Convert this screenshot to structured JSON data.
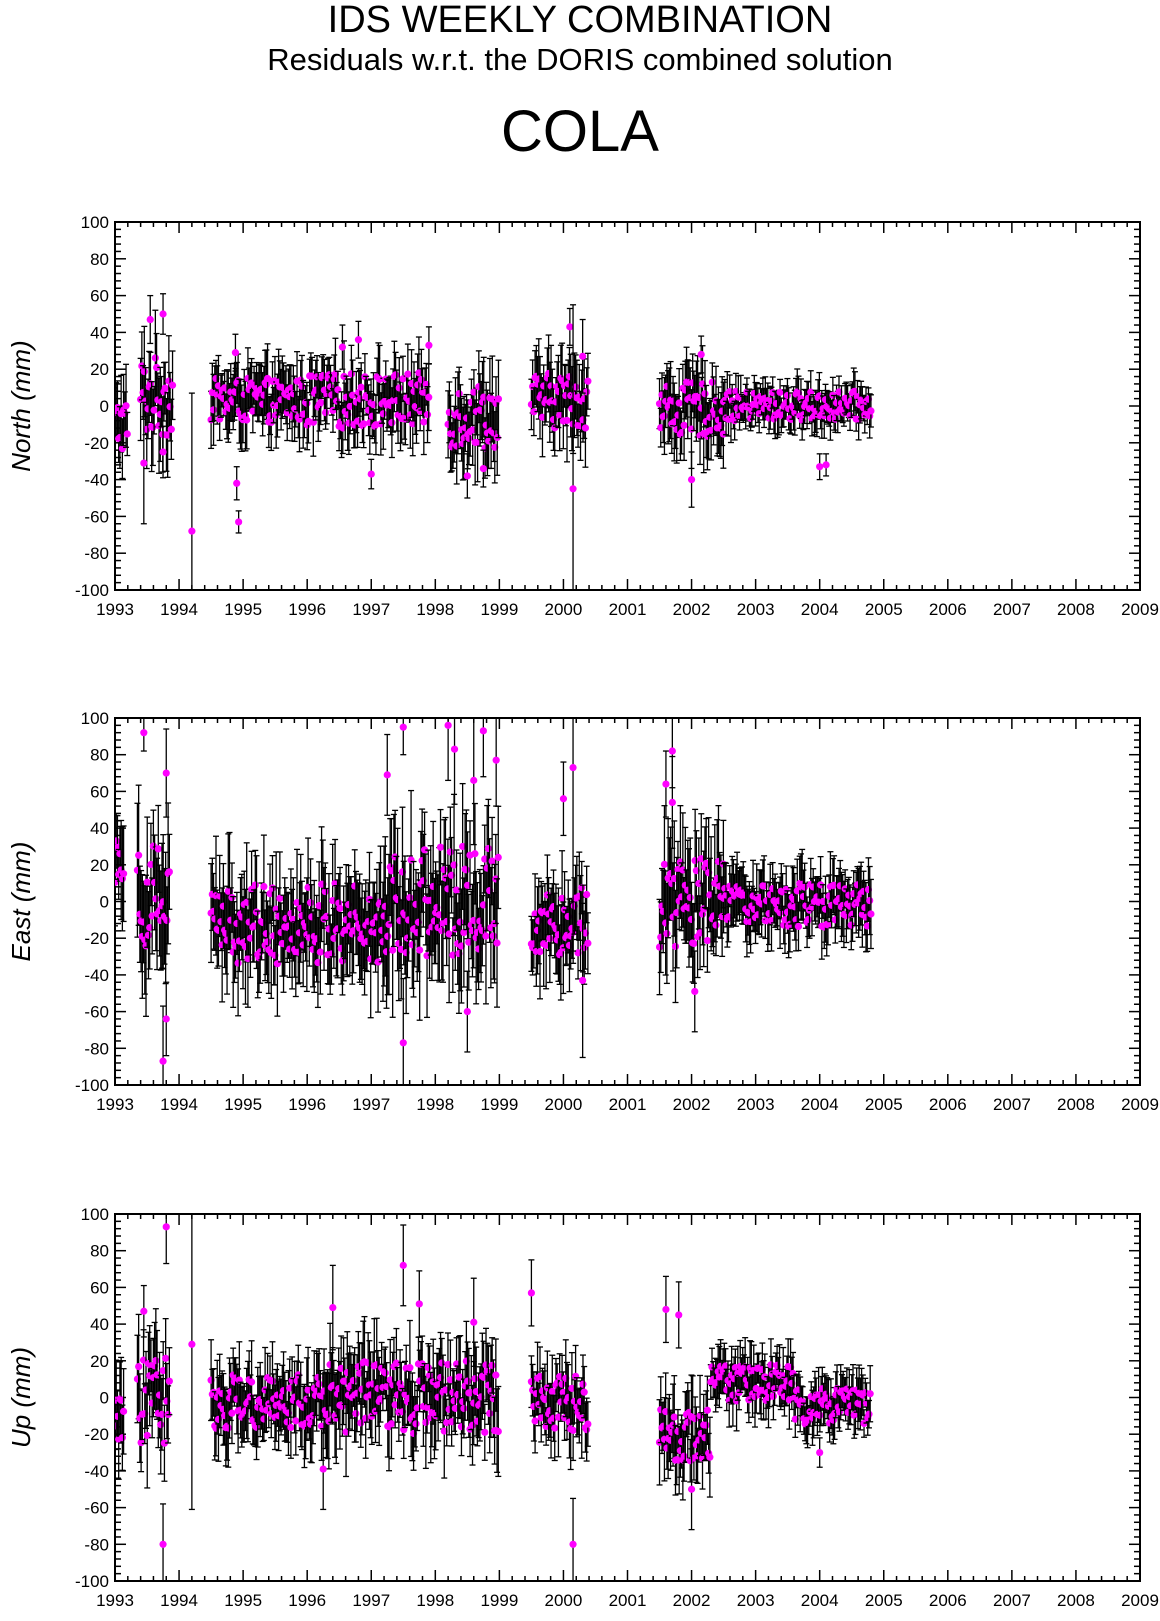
{
  "header": {
    "title": "IDS WEEKLY COMBINATION",
    "subtitle": "Residuals w.r.t. the DORIS combined solution",
    "station": "COLA"
  },
  "colors": {
    "marker": "#ff00ff",
    "errorbar": "#000000",
    "axis": "#000000"
  },
  "chart_data": [
    {
      "type": "scatter",
      "name": "north",
      "xlabel": "",
      "ylabel": "North (mm)",
      "xlim": [
        1993,
        2009
      ],
      "ylim": [
        -100,
        100
      ],
      "xticks": [
        "1993",
        "1994",
        "1995",
        "1996",
        "1997",
        "1998",
        "1999",
        "2000",
        "2001",
        "2002",
        "2003",
        "2004",
        "2005",
        "2006",
        "2007",
        "2008",
        "2009"
      ],
      "yticks": [
        "100",
        "80",
        "60",
        "40",
        "20",
        "0",
        "-20",
        "-40",
        "-60",
        "-80",
        "-100"
      ],
      "marker": "circle",
      "error_bars": true,
      "grid": false,
      "segments": [
        {
          "start": 1993.0,
          "end": 1993.2,
          "center": -10,
          "amp": 15,
          "err": 18
        },
        {
          "start": 1993.4,
          "end": 1993.9,
          "center": 5,
          "amp": 22,
          "err": 20
        },
        {
          "start": 1994.5,
          "end": 1996.0,
          "center": 3,
          "amp": 12,
          "err": 15
        },
        {
          "start": 1996.0,
          "end": 1997.9,
          "center": 3,
          "amp": 15,
          "err": 15
        },
        {
          "start": 1998.2,
          "end": 1999.0,
          "center": -5,
          "amp": 18,
          "err": 18
        },
        {
          "start": 1999.5,
          "end": 2000.4,
          "center": 3,
          "amp": 15,
          "err": 18
        },
        {
          "start": 2001.5,
          "end": 2002.5,
          "center": -2,
          "amp": 15,
          "err": 17
        },
        {
          "start": 2002.5,
          "end": 2004.8,
          "center": 0,
          "amp": 8,
          "err": 10
        }
      ],
      "points": [
        {
          "x": 1994.2,
          "y": -68,
          "err": 75
        },
        {
          "x": 1993.55,
          "y": 47,
          "err": 13
        },
        {
          "x": 1993.75,
          "y": 50,
          "err": 11
        },
        {
          "x": 1993.45,
          "y": -31,
          "err": 33
        },
        {
          "x": 1993.75,
          "y": -25,
          "err": 14
        },
        {
          "x": 1994.9,
          "y": -42,
          "err": 9
        },
        {
          "x": 1994.93,
          "y": -63,
          "err": 6
        },
        {
          "x": 1994.88,
          "y": 29,
          "err": 10
        },
        {
          "x": 1996.55,
          "y": 32,
          "err": 12
        },
        {
          "x": 1996.8,
          "y": 36,
          "err": 10
        },
        {
          "x": 1997.0,
          "y": -37,
          "err": 8
        },
        {
          "x": 1997.9,
          "y": 33,
          "err": 10
        },
        {
          "x": 1998.5,
          "y": -38,
          "err": 12
        },
        {
          "x": 1998.75,
          "y": -34,
          "err": 10
        },
        {
          "x": 2000.1,
          "y": 43,
          "err": 10
        },
        {
          "x": 2000.15,
          "y": -45,
          "err": 100
        },
        {
          "x": 2000.3,
          "y": 27,
          "err": 20
        },
        {
          "x": 2002.0,
          "y": -40,
          "err": 15
        },
        {
          "x": 2002.15,
          "y": 28,
          "err": 10
        },
        {
          "x": 2004.0,
          "y": -33,
          "err": 7
        },
        {
          "x": 2004.1,
          "y": -32,
          "err": 6
        }
      ]
    },
    {
      "type": "scatter",
      "name": "east",
      "xlabel": "",
      "ylabel": "East (mm)",
      "xlim": [
        1993,
        2009
      ],
      "ylim": [
        -100,
        100
      ],
      "xticks": [
        "1993",
        "1994",
        "1995",
        "1996",
        "1997",
        "1998",
        "1999",
        "2000",
        "2001",
        "2002",
        "2003",
        "2004",
        "2005",
        "2006",
        "2007",
        "2008",
        "2009"
      ],
      "yticks": [
        "100",
        "80",
        "60",
        "40",
        "20",
        "0",
        "-20",
        "-40",
        "-60",
        "-80",
        "-100"
      ],
      "marker": "circle",
      "error_bars": true,
      "grid": false,
      "segments": [
        {
          "start": 1993.0,
          "end": 1993.15,
          "center": 25,
          "amp": 15,
          "err": 22
        },
        {
          "start": 1993.35,
          "end": 1993.85,
          "center": 5,
          "amp": 30,
          "err": 30
        },
        {
          "start": 1994.5,
          "end": 1997.2,
          "center": -12,
          "amp": 22,
          "err": 25
        },
        {
          "start": 1997.2,
          "end": 1999.0,
          "center": 0,
          "amp": 30,
          "err": 30
        },
        {
          "start": 1999.5,
          "end": 2000.4,
          "center": -10,
          "amp": 20,
          "err": 20
        },
        {
          "start": 2001.5,
          "end": 2002.5,
          "center": 0,
          "amp": 25,
          "err": 25
        },
        {
          "start": 2002.5,
          "end": 2004.8,
          "center": -2,
          "amp": 12,
          "err": 15
        }
      ],
      "points": [
        {
          "x": 1993.45,
          "y": 92,
          "err": 10
        },
        {
          "x": 1993.8,
          "y": 70,
          "err": 24
        },
        {
          "x": 1993.75,
          "y": -87,
          "err": 30
        },
        {
          "x": 1993.8,
          "y": -64,
          "err": 20
        },
        {
          "x": 1997.25,
          "y": 69,
          "err": 22
        },
        {
          "x": 1997.5,
          "y": 95,
          "err": 15
        },
        {
          "x": 1997.5,
          "y": -77,
          "err": 35
        },
        {
          "x": 1998.2,
          "y": 96,
          "err": 30
        },
        {
          "x": 1998.3,
          "y": 83,
          "err": 30
        },
        {
          "x": 1998.6,
          "y": 66,
          "err": 35
        },
        {
          "x": 1998.75,
          "y": 93,
          "err": 25
        },
        {
          "x": 1998.95,
          "y": 77,
          "err": 25
        },
        {
          "x": 1998.5,
          "y": -60,
          "err": 22
        },
        {
          "x": 2000.0,
          "y": 56,
          "err": 20
        },
        {
          "x": 2000.15,
          "y": 73,
          "err": 100
        },
        {
          "x": 2000.3,
          "y": -43,
          "err": 42
        },
        {
          "x": 2001.6,
          "y": 64,
          "err": 18
        },
        {
          "x": 2001.7,
          "y": 82,
          "err": 20
        },
        {
          "x": 2001.7,
          "y": 54,
          "err": 25
        },
        {
          "x": 2002.05,
          "y": -49,
          "err": 22
        }
      ]
    },
    {
      "type": "scatter",
      "name": "up",
      "xlabel": "",
      "ylabel": "Up (mm)",
      "xlim": [
        1993,
        2009
      ],
      "ylim": [
        -100,
        100
      ],
      "xticks": [
        "1993",
        "1994",
        "1995",
        "1996",
        "1997",
        "1998",
        "1999",
        "2000",
        "2001",
        "2002",
        "2003",
        "2004",
        "2005",
        "2006",
        "2007",
        "2008",
        "2009"
      ],
      "yticks": [
        "100",
        "80",
        "60",
        "40",
        "20",
        "0",
        "-20",
        "-40",
        "-60",
        "-80",
        "-100"
      ],
      "marker": "circle",
      "error_bars": true,
      "grid": false,
      "segments": [
        {
          "start": 1993.0,
          "end": 1993.15,
          "center": -10,
          "amp": 15,
          "err": 18
        },
        {
          "start": 1993.35,
          "end": 1993.85,
          "center": 0,
          "amp": 25,
          "err": 22
        },
        {
          "start": 1994.5,
          "end": 1996.3,
          "center": -2,
          "amp": 15,
          "err": 18
        },
        {
          "start": 1996.3,
          "end": 1999.0,
          "center": 0,
          "amp": 20,
          "err": 20
        },
        {
          "start": 1999.5,
          "end": 2000.4,
          "center": -3,
          "amp": 15,
          "err": 17
        },
        {
          "start": 2001.5,
          "end": 2002.3,
          "center": -20,
          "amp": 15,
          "err": 18
        },
        {
          "start": 2002.3,
          "end": 2003.6,
          "center": 8,
          "amp": 10,
          "err": 13
        },
        {
          "start": 2003.6,
          "end": 2004.8,
          "center": -5,
          "amp": 10,
          "err": 12
        }
      ],
      "points": [
        {
          "x": 1993.8,
          "y": 93,
          "err": 20
        },
        {
          "x": 1993.75,
          "y": -80,
          "err": 22
        },
        {
          "x": 1993.45,
          "y": 47,
          "err": 14
        },
        {
          "x": 1994.2,
          "y": 29,
          "err": 90
        },
        {
          "x": 1996.4,
          "y": 49,
          "err": 23
        },
        {
          "x": 1996.25,
          "y": -39,
          "err": 22
        },
        {
          "x": 1997.5,
          "y": 72,
          "err": 22
        },
        {
          "x": 1997.75,
          "y": 51,
          "err": 18
        },
        {
          "x": 1998.6,
          "y": 41,
          "err": 24
        },
        {
          "x": 1999.5,
          "y": 57,
          "err": 18
        },
        {
          "x": 2000.15,
          "y": -80,
          "err": 25
        },
        {
          "x": 2001.6,
          "y": 48,
          "err": 18
        },
        {
          "x": 2001.8,
          "y": 45,
          "err": 18
        },
        {
          "x": 2002.0,
          "y": -50,
          "err": 22
        },
        {
          "x": 2004.0,
          "y": -30,
          "err": 8
        }
      ]
    }
  ]
}
